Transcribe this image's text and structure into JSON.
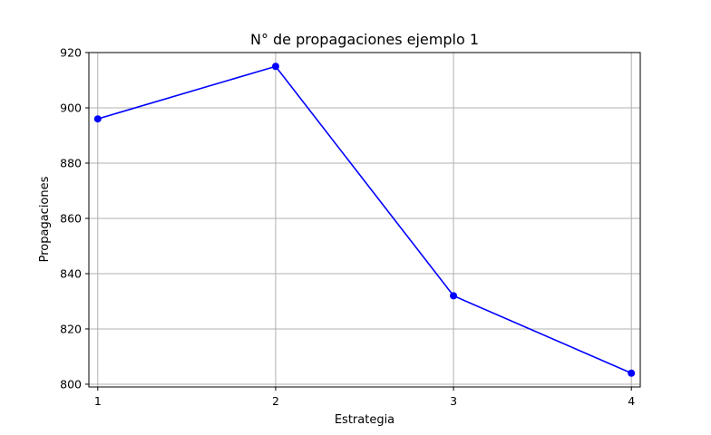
{
  "chart_data": {
    "type": "line",
    "title": "N° de propagaciones ejemplo 1",
    "xlabel": "Estrategia",
    "ylabel": "Propagaciones",
    "x": [
      1,
      2,
      3,
      4
    ],
    "xticks": [
      "1",
      "2",
      "3",
      "4"
    ],
    "xlim": [
      0.95,
      4.05
    ],
    "ylim": [
      799,
      920
    ],
    "yticks": [
      800,
      820,
      840,
      860,
      880,
      900,
      920
    ],
    "grid": true,
    "series": [
      {
        "values": [
          896,
          915,
          832,
          804
        ],
        "color": "#0000ff",
        "marker": "circle"
      }
    ]
  }
}
